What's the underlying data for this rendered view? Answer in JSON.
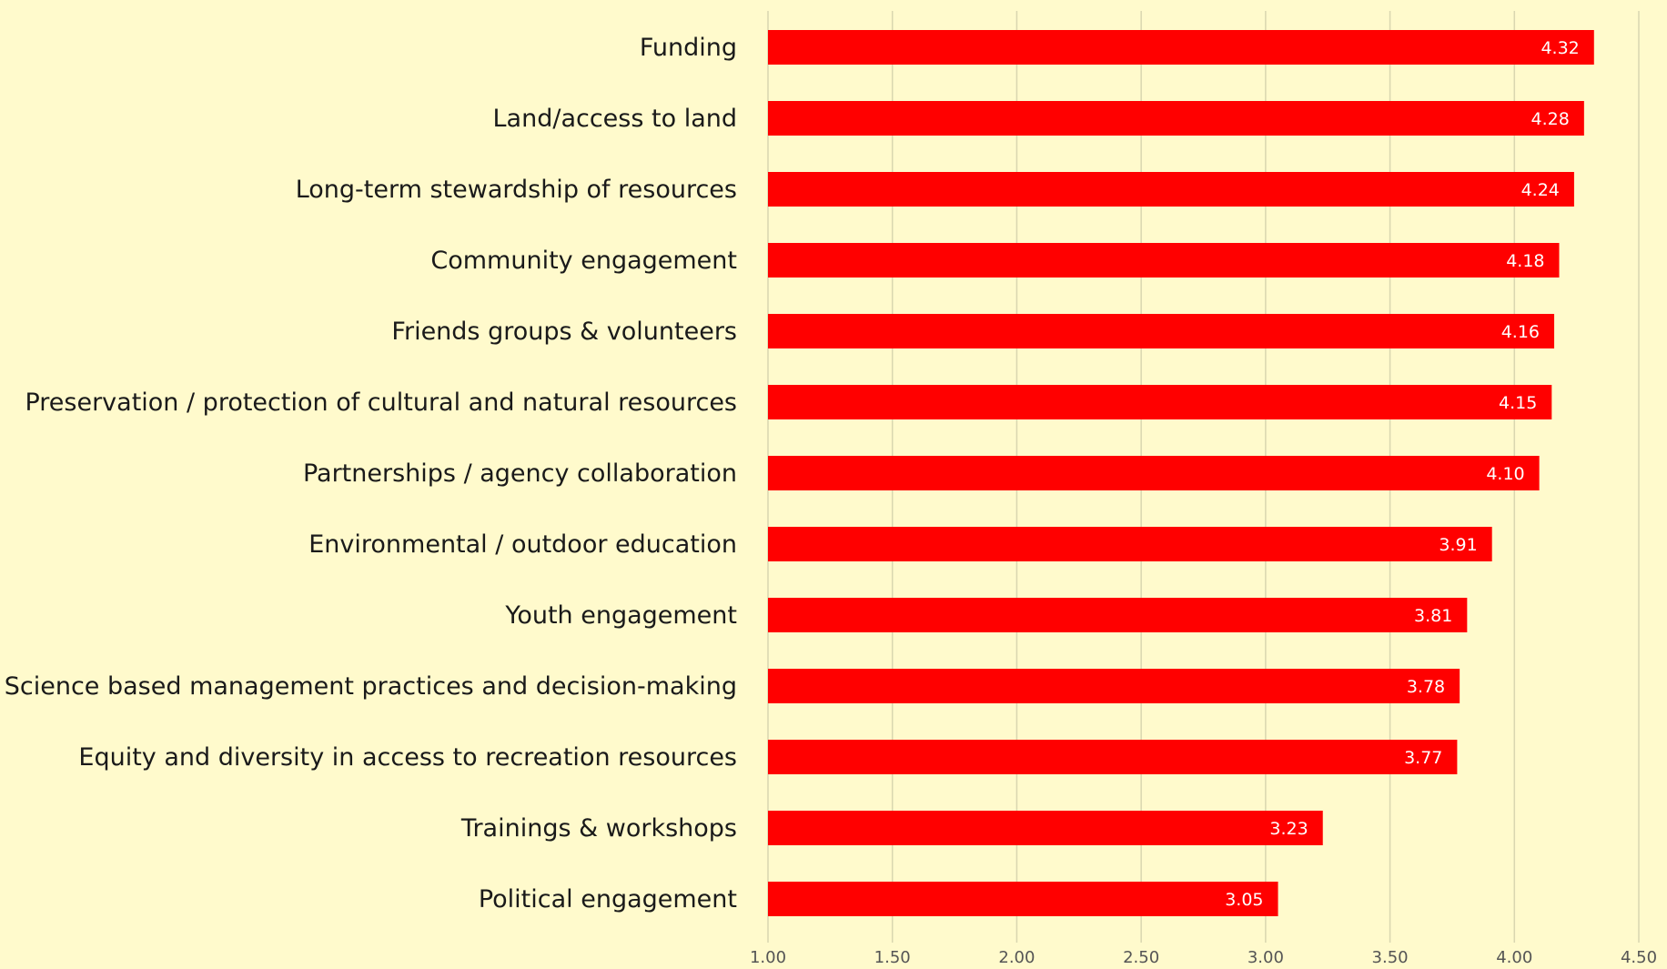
{
  "chart_data": {
    "type": "bar",
    "orientation": "horizontal",
    "categories": [
      "Funding",
      "Land/access to land",
      "Long-term stewardship of resources",
      "Community engagement",
      "Friends groups & volunteers",
      "Preservation / protection of cultural and natural resources",
      "Partnerships / agency collaboration",
      "Environmental / outdoor education",
      "Youth engagement",
      "Science based management practices and decision-making",
      "Equity and diversity in access to recreation resources",
      "Trainings & workshops",
      "Political engagement"
    ],
    "values": [
      4.32,
      4.28,
      4.24,
      4.18,
      4.16,
      4.15,
      4.1,
      3.91,
      3.81,
      3.78,
      3.77,
      3.23,
      3.05
    ],
    "value_labels": [
      "4.32",
      "4.28",
      "4.24",
      "4.18",
      "4.16",
      "4.15",
      "4.10",
      "3.91",
      "3.81",
      "3.78",
      "3.77",
      "3.23",
      "3.05"
    ],
    "xlim": [
      1.0,
      4.5
    ],
    "x_ticks": [
      1.0,
      1.5,
      2.0,
      2.5,
      3.0,
      3.5,
      4.0,
      4.5
    ],
    "x_tick_labels": [
      "1.00",
      "1.50",
      "2.00",
      "2.50",
      "3.00",
      "3.50",
      "4.00",
      "4.50"
    ],
    "title": "",
    "xlabel": "",
    "ylabel": "",
    "grid": true,
    "legend": "none",
    "colors": {
      "bar": "#ff0000",
      "background": "#fffacc",
      "grid": "#d9d6b0",
      "value_text": "#ffffff",
      "label_text": "#1a1a1a",
      "tick_text": "#555555"
    }
  }
}
